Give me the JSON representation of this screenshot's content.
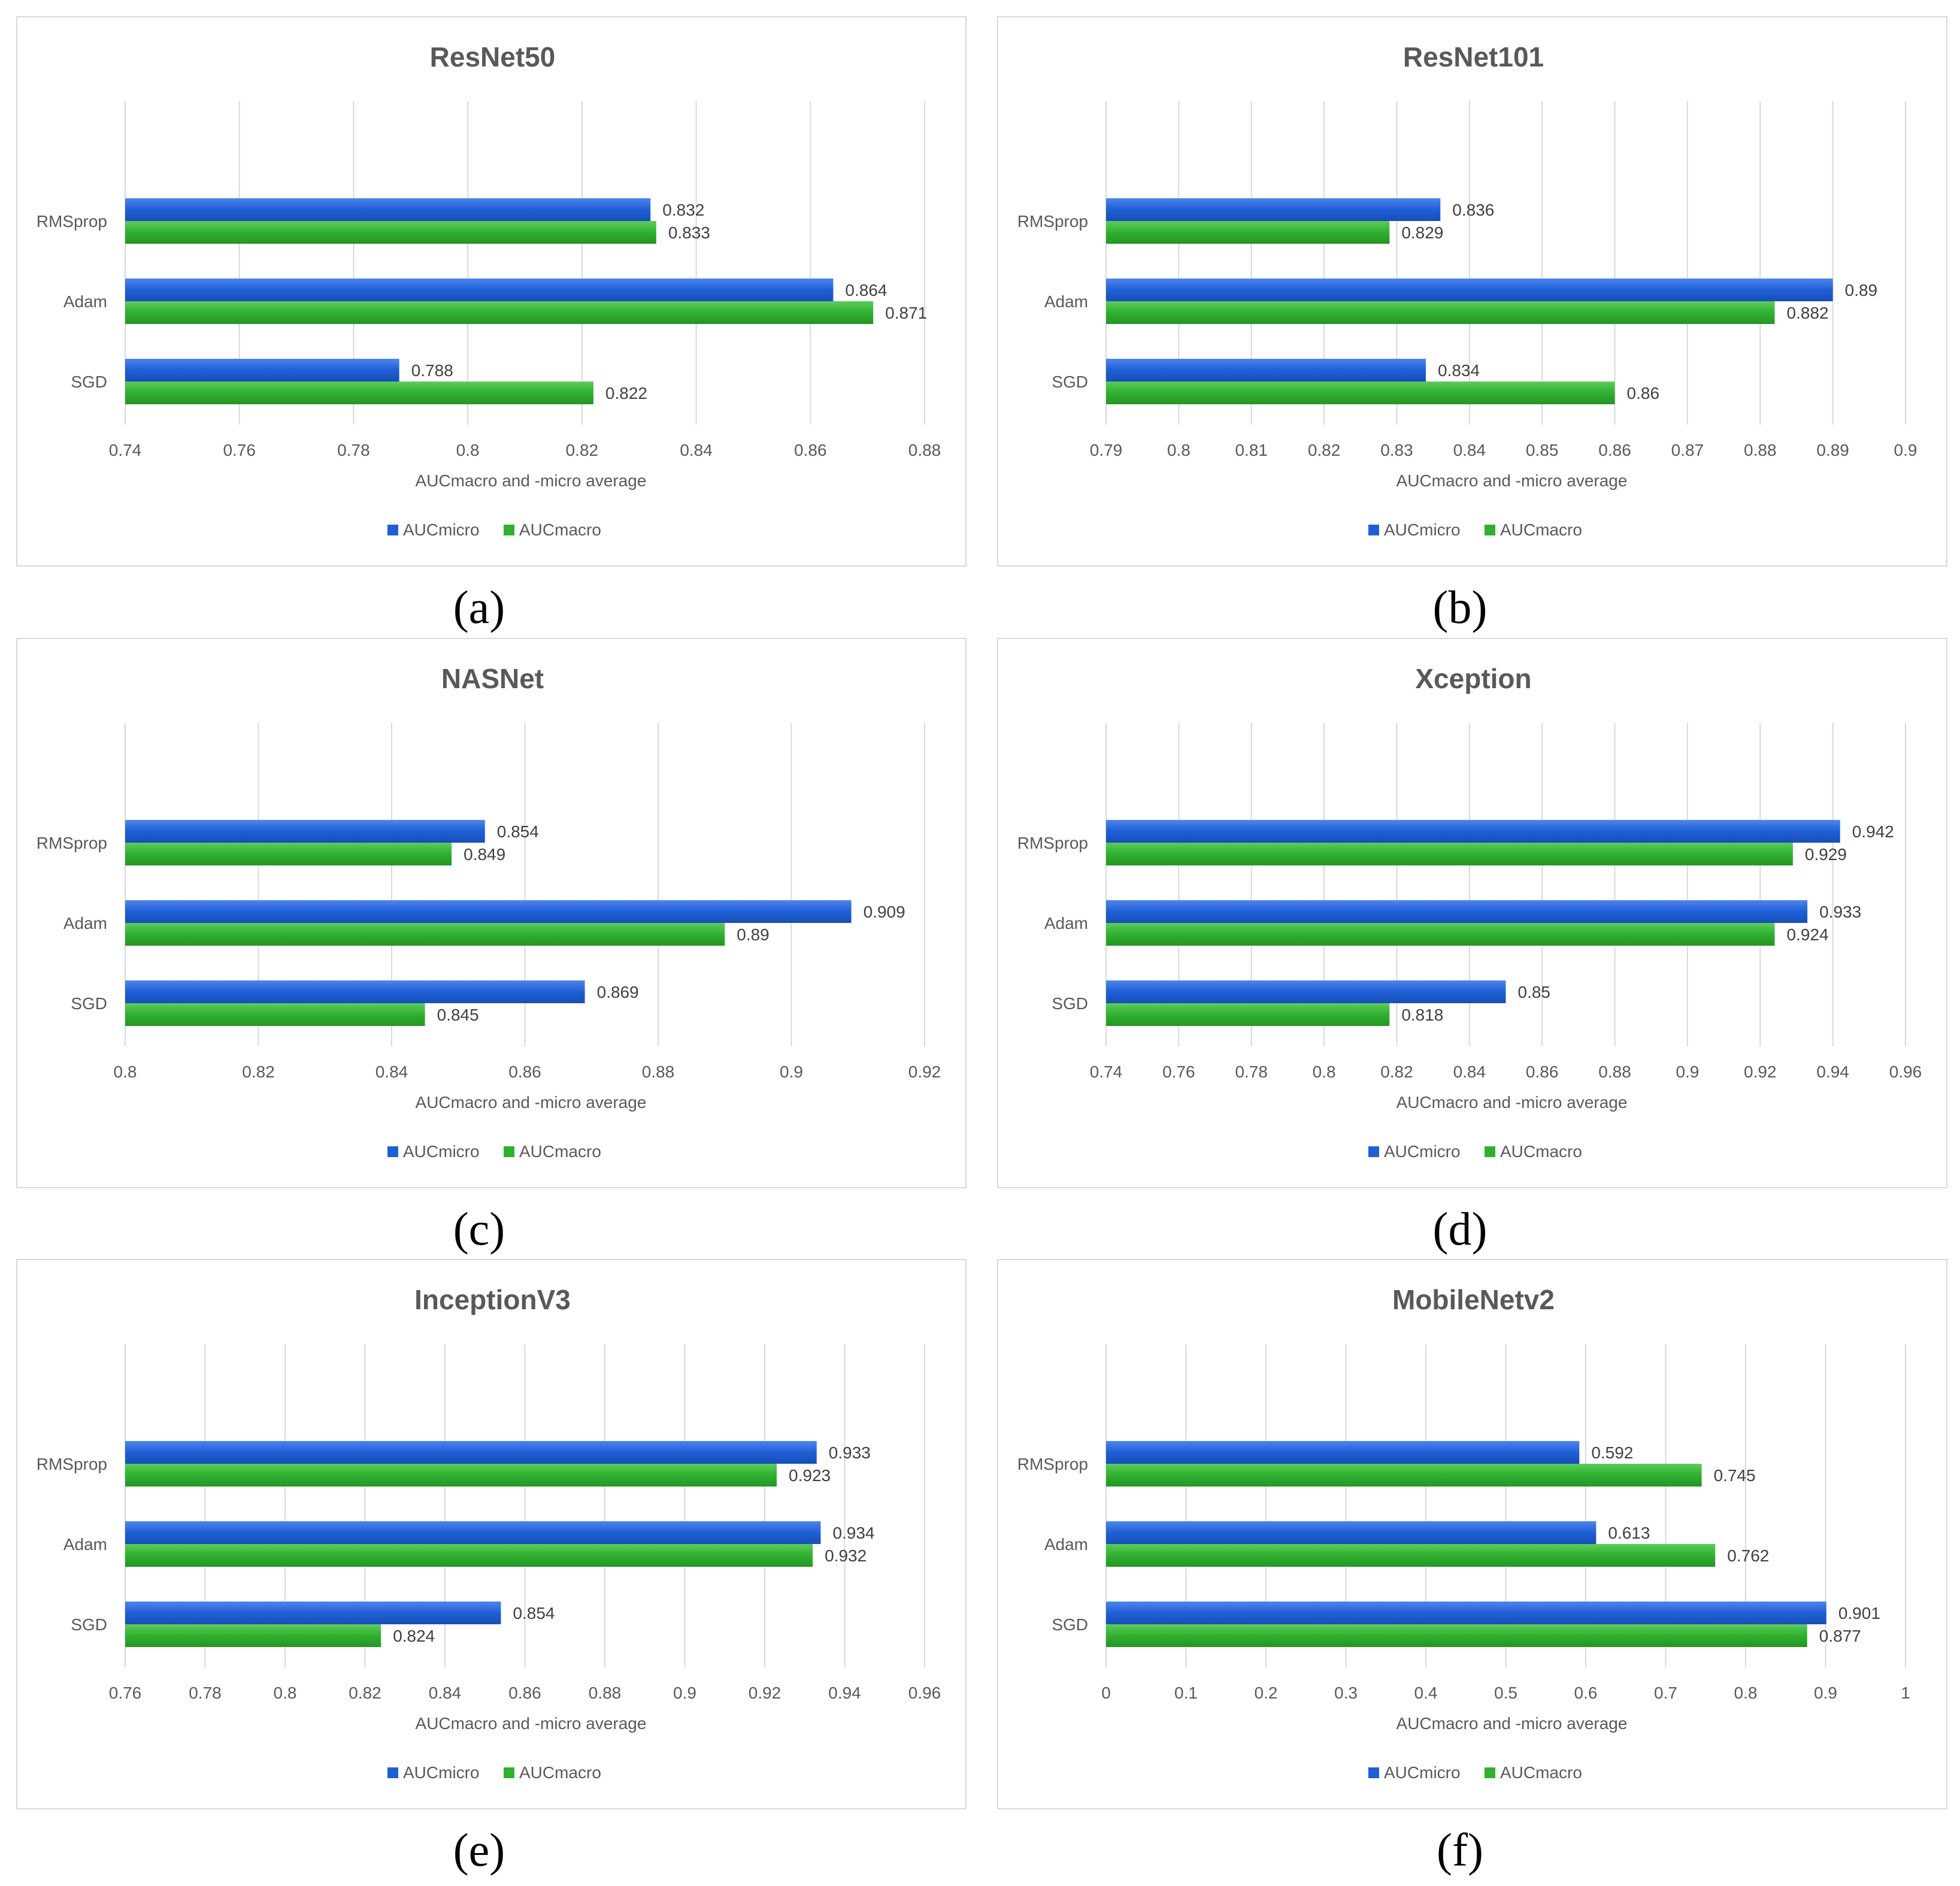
{
  "colors": {
    "micro": "#1f5fd6",
    "macro": "#2fb12f",
    "grid": "#d9d9d9",
    "text": "#595959"
  },
  "chart_data": [
    {
      "type": "bar",
      "orientation": "horizontal",
      "title": "ResNet50",
      "xlabel": "AUCmacro and -micro average",
      "caption": "(a)",
      "categories": [
        "RMSprop",
        "Adam",
        "SGD"
      ],
      "series": [
        {
          "name": "AUCmicro",
          "values": [
            0.832,
            0.864,
            0.788
          ]
        },
        {
          "name": "AUCmacro",
          "values": [
            0.833,
            0.871,
            0.822
          ]
        }
      ],
      "xlim": [
        0.74,
        0.88
      ],
      "ticks": [
        0.74,
        0.76,
        0.78,
        0.8,
        0.82,
        0.84,
        0.86,
        0.88
      ],
      "tick_labels": [
        "0.74",
        "0.76",
        "0.78",
        "0.8",
        "0.82",
        "0.84",
        "0.86",
        "0.88"
      ],
      "value_labels": {
        "AUCmicro": [
          "0.832",
          "0.864",
          "0.788"
        ],
        "AUCmacro": [
          "0.833",
          "0.871",
          "0.822"
        ]
      },
      "legend": "bottom"
    },
    {
      "type": "bar",
      "orientation": "horizontal",
      "title": "ResNet101",
      "xlabel": "AUCmacro and -micro average",
      "caption": "(b)",
      "categories": [
        "RMSprop",
        "Adam",
        "SGD"
      ],
      "series": [
        {
          "name": "AUCmicro",
          "values": [
            0.836,
            0.89,
            0.834
          ]
        },
        {
          "name": "AUCmacro",
          "values": [
            0.829,
            0.882,
            0.86
          ]
        }
      ],
      "xlim": [
        0.79,
        0.9
      ],
      "ticks": [
        0.79,
        0.8,
        0.81,
        0.82,
        0.83,
        0.84,
        0.85,
        0.86,
        0.87,
        0.88,
        0.89,
        0.9
      ],
      "tick_labels": [
        "0.79",
        "0.8",
        "0.81",
        "0.82",
        "0.83",
        "0.84",
        "0.85",
        "0.86",
        "0.87",
        "0.88",
        "0.89",
        "0.9"
      ],
      "value_labels": {
        "AUCmicro": [
          "0.836",
          "0.89",
          "0.834"
        ],
        "AUCmacro": [
          "0.829",
          "0.882",
          "0.86"
        ]
      },
      "legend": "bottom"
    },
    {
      "type": "bar",
      "orientation": "horizontal",
      "title": "NASNet",
      "xlabel": "AUCmacro and -micro average",
      "caption": "(c)",
      "categories": [
        "RMSprop",
        "Adam",
        "SGD"
      ],
      "series": [
        {
          "name": "AUCmicro",
          "values": [
            0.854,
            0.909,
            0.869
          ]
        },
        {
          "name": "AUCmacro",
          "values": [
            0.849,
            0.89,
            0.845
          ]
        }
      ],
      "xlim": [
        0.8,
        0.92
      ],
      "ticks": [
        0.8,
        0.82,
        0.84,
        0.86,
        0.88,
        0.9,
        0.92
      ],
      "tick_labels": [
        "0.8",
        "0.82",
        "0.84",
        "0.86",
        "0.88",
        "0.9",
        "0.92"
      ],
      "value_labels": {
        "AUCmicro": [
          "0.854",
          "0.909",
          "0.869"
        ],
        "AUCmacro": [
          "0.849",
          "0.89",
          "0.845"
        ]
      },
      "legend": "bottom"
    },
    {
      "type": "bar",
      "orientation": "horizontal",
      "title": "Xception",
      "xlabel": "AUCmacro and -micro average",
      "caption": "(d)",
      "categories": [
        "RMSprop",
        "Adam",
        "SGD"
      ],
      "series": [
        {
          "name": "AUCmicro",
          "values": [
            0.942,
            0.933,
            0.85
          ]
        },
        {
          "name": "AUCmacro",
          "values": [
            0.929,
            0.924,
            0.818
          ]
        }
      ],
      "xlim": [
        0.74,
        0.96
      ],
      "ticks": [
        0.74,
        0.76,
        0.78,
        0.8,
        0.82,
        0.84,
        0.86,
        0.88,
        0.9,
        0.92,
        0.94,
        0.96
      ],
      "tick_labels": [
        "0.74",
        "0.76",
        "0.78",
        "0.8",
        "0.82",
        "0.84",
        "0.86",
        "0.88",
        "0.9",
        "0.92",
        "0.94",
        "0.96"
      ],
      "value_labels": {
        "AUCmicro": [
          "0.942",
          "0.933",
          "0.85"
        ],
        "AUCmacro": [
          "0.929",
          "0.924",
          "0.818"
        ]
      },
      "legend": "bottom"
    },
    {
      "type": "bar",
      "orientation": "horizontal",
      "title": "InceptionV3",
      "xlabel": "AUCmacro and -micro average",
      "caption": "(e)",
      "categories": [
        "RMSprop",
        "Adam",
        "SGD"
      ],
      "series": [
        {
          "name": "AUCmicro",
          "values": [
            0.933,
            0.934,
            0.854
          ]
        },
        {
          "name": "AUCmacro",
          "values": [
            0.923,
            0.932,
            0.824
          ]
        }
      ],
      "xlim": [
        0.76,
        0.96
      ],
      "ticks": [
        0.76,
        0.78,
        0.8,
        0.82,
        0.84,
        0.86,
        0.88,
        0.9,
        0.92,
        0.94,
        0.96
      ],
      "tick_labels": [
        "0.76",
        "0.78",
        "0.8",
        "0.82",
        "0.84",
        "0.86",
        "0.88",
        "0.9",
        "0.92",
        "0.94",
        "0.96"
      ],
      "value_labels": {
        "AUCmicro": [
          "0.933",
          "0.934",
          "0.854"
        ],
        "AUCmacro": [
          "0.923",
          "0.932",
          "0.824"
        ]
      },
      "legend": "bottom"
    },
    {
      "type": "bar",
      "orientation": "horizontal",
      "title": "MobileNetv2",
      "xlabel": "AUCmacro and -micro average",
      "caption": "(f)",
      "categories": [
        "RMSprop",
        "Adam",
        "SGD"
      ],
      "series": [
        {
          "name": "AUCmicro",
          "values": [
            0.592,
            0.613,
            0.901
          ]
        },
        {
          "name": "AUCmacro",
          "values": [
            0.745,
            0.762,
            0.877
          ]
        }
      ],
      "xlim": [
        0,
        1
      ],
      "ticks": [
        0,
        0.1,
        0.2,
        0.3,
        0.4,
        0.5,
        0.6,
        0.7,
        0.8,
        0.9,
        1
      ],
      "tick_labels": [
        "0",
        "0.1",
        "0.2",
        "0.3",
        "0.4",
        "0.5",
        "0.6",
        "0.7",
        "0.8",
        "0.9",
        "1"
      ],
      "value_labels": {
        "AUCmicro": [
          "0.592",
          "0.613",
          "0.901"
        ],
        "AUCmacro": [
          "0.745",
          "0.762",
          "0.877"
        ]
      },
      "legend": "bottom"
    }
  ]
}
